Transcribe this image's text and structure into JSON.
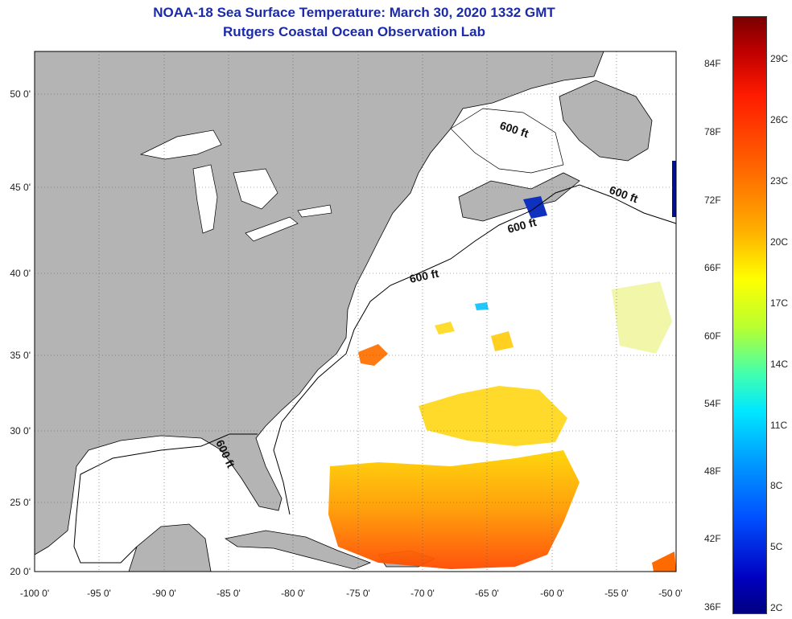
{
  "header": {
    "title_line1": "NOAA-18 Sea Surface Temperature:  March 30, 2020 1332 GMT",
    "title_line2": "Rutgers Coastal Ocean Observation Lab"
  },
  "map": {
    "lat_labels": [
      "50 0'",
      "45 0'",
      "40 0'",
      "35 0'",
      "30 0'",
      "25 0'",
      "20 0'"
    ],
    "lon_labels": [
      "-100 0'",
      "-95 0'",
      "-90 0'",
      "-85 0'",
      "-80 0'",
      "-75 0'",
      "-70 0'",
      "-65 0'",
      "-60 0'",
      "-55 0'",
      "-50 0'"
    ],
    "contour_labels": [
      "600 ft",
      "600 ft",
      "600 ft",
      "600 ft",
      "600 ft"
    ],
    "colors": {
      "land": "#b4b4b4",
      "ocean": "#ffffff",
      "grid": "#555555"
    }
  },
  "colorbar": {
    "fahrenheit_ticks": [
      "84F",
      "78F",
      "72F",
      "66F",
      "60F",
      "54F",
      "48F",
      "42F",
      "36F"
    ],
    "celsius_ticks": [
      "29C",
      "26C",
      "23C",
      "20C",
      "17C",
      "14C",
      "11C",
      "8C",
      "5C",
      "2C"
    ]
  }
}
